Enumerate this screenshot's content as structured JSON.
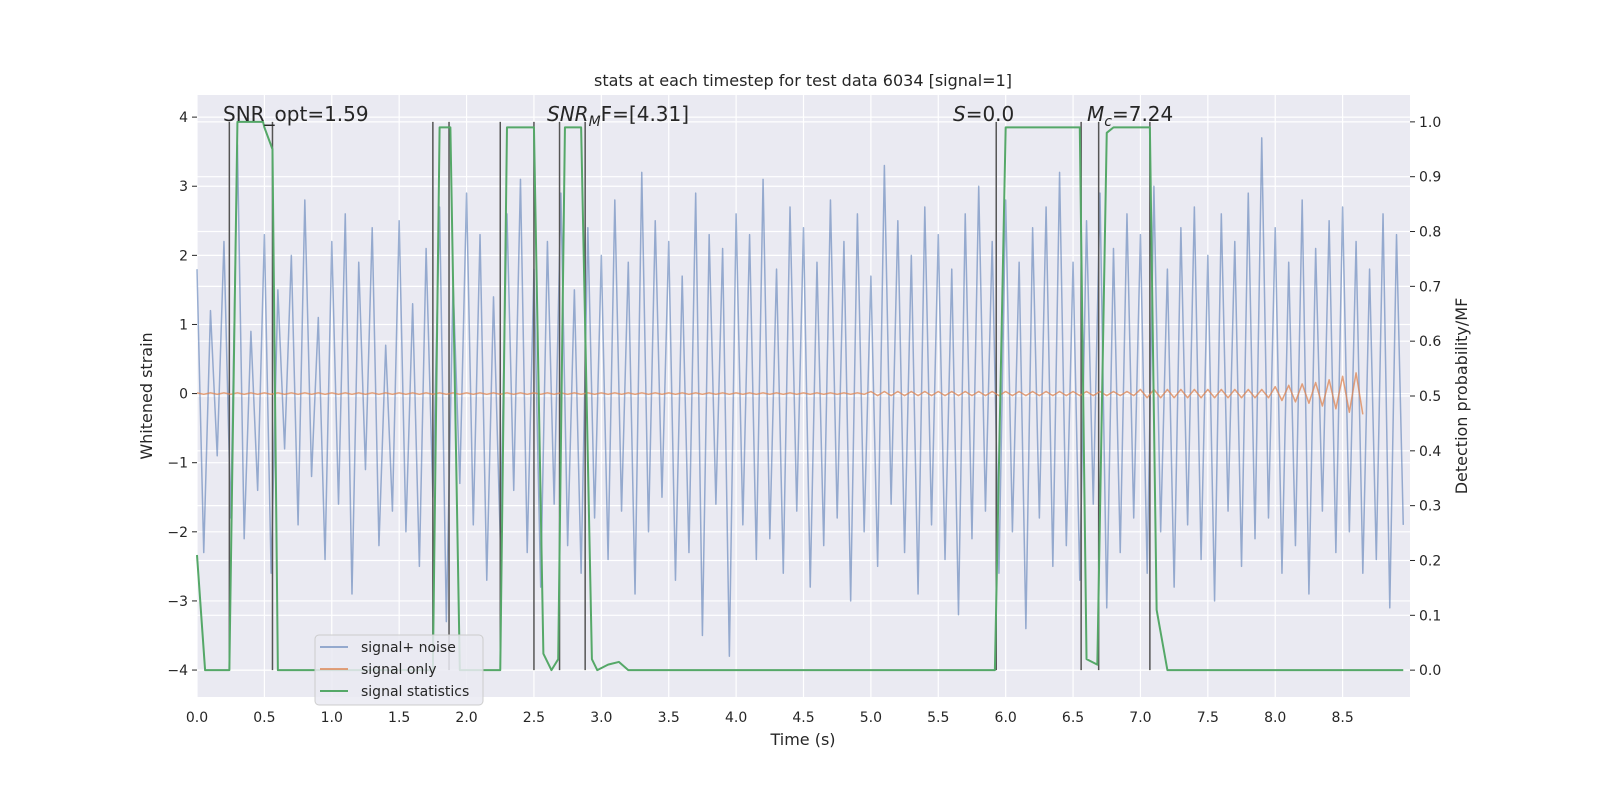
{
  "chart_data": {
    "type": "line",
    "title": "stats at each timestep for test data 6034 [signal=1]",
    "x_label": "Time (s)",
    "y_label": "Whitened strain",
    "y2_label": "Detection probability/MF",
    "xlim": [
      0,
      9.0
    ],
    "ylim": [
      -4.39,
      4.32
    ],
    "y2lim": [
      -0.049,
      1.049
    ],
    "xticks": [
      {
        "value": 0,
        "label": "0.0"
      },
      0.5,
      {
        "value": 1,
        "label": "1.0"
      },
      1.5,
      {
        "value": 2,
        "label": "2.0"
      },
      2.5,
      {
        "value": 3,
        "label": "3.0"
      },
      3.5,
      {
        "value": 4,
        "label": "4.0"
      },
      4.5,
      {
        "value": 5,
        "label": "5.0"
      },
      5.5,
      {
        "value": 6,
        "label": "6.0"
      },
      6.5,
      {
        "value": 7,
        "label": "7.0"
      },
      7.5,
      {
        "value": 8,
        "label": "8.0"
      },
      8.5
    ],
    "yticks": [
      {
        "value": -4,
        "label": "−4"
      },
      {
        "value": -3,
        "label": "−3"
      },
      {
        "value": -2,
        "label": "−2"
      },
      {
        "value": -1,
        "label": "−1"
      },
      0,
      1,
      2,
      3,
      4
    ],
    "y2ticks": [
      {
        "value": 0,
        "label": "0.0"
      },
      0.1,
      0.2,
      0.3,
      0.4,
      0.5,
      0.6,
      0.7,
      0.8,
      0.9,
      {
        "value": 1,
        "label": "1.0"
      }
    ],
    "grid": true,
    "legend": "lower left",
    "annotations": [
      {
        "text": "SNR_opt=1.59"
      },
      {
        "text": "SNR",
        "sub": "M",
        "tail": "F=[4.31]"
      },
      {
        "text": "S",
        "tail": "=0.0"
      },
      {
        "text": "M",
        "sub": "c",
        "tail": "=7.24"
      }
    ],
    "vlines": [
      0.24,
      0.56,
      1.75,
      1.87,
      2.25,
      2.5,
      2.69,
      2.88,
      5.93,
      6.56,
      6.69,
      7.07
    ],
    "vline_color": "#555555",
    "series": [
      {
        "name": "signal+ noise",
        "color": "#4c72b0",
        "opacity": 0.55,
        "x": [
          0,
          0.05,
          0.1,
          0.15,
          0.2,
          0.25,
          0.3,
          0.35,
          0.4,
          0.45,
          0.5,
          0.55,
          0.6,
          0.65,
          0.7,
          0.75,
          0.8,
          0.85,
          0.9,
          0.95,
          1,
          1.05,
          1.1,
          1.15,
          1.2,
          1.25,
          1.3,
          1.35,
          1.4,
          1.45,
          1.5,
          1.55,
          1.6,
          1.65,
          1.7,
          1.75,
          1.8,
          1.85,
          1.9,
          1.95,
          2,
          2.05,
          2.1,
          2.15,
          2.2,
          2.25,
          2.3,
          2.35,
          2.4,
          2.45,
          2.5,
          2.55,
          2.6,
          2.65,
          2.7,
          2.75,
          2.8,
          2.85,
          2.9,
          2.95,
          3,
          3.05,
          3.1,
          3.15,
          3.2,
          3.25,
          3.3,
          3.35,
          3.4,
          3.45,
          3.5,
          3.55,
          3.6,
          3.65,
          3.7,
          3.75,
          3.8,
          3.85,
          3.9,
          3.95,
          4,
          4.05,
          4.1,
          4.15,
          4.2,
          4.25,
          4.3,
          4.35,
          4.4,
          4.45,
          4.5,
          4.55,
          4.6,
          4.65,
          4.7,
          4.75,
          4.8,
          4.85,
          4.9,
          4.95,
          5,
          5.05,
          5.1,
          5.15,
          5.2,
          5.25,
          5.3,
          5.35,
          5.4,
          5.45,
          5.5,
          5.55,
          5.6,
          5.65,
          5.7,
          5.75,
          5.8,
          5.85,
          5.9,
          5.95,
          6,
          6.05,
          6.1,
          6.15,
          6.2,
          6.25,
          6.3,
          6.35,
          6.4,
          6.45,
          6.5,
          6.55,
          6.6,
          6.65,
          6.7,
          6.75,
          6.8,
          6.85,
          6.9,
          6.95,
          7,
          7.05,
          7.1,
          7.15,
          7.2,
          7.25,
          7.3,
          7.35,
          7.4,
          7.45,
          7.5,
          7.55,
          7.6,
          7.65,
          7.7,
          7.75,
          7.8,
          7.85,
          7.9,
          7.95,
          8,
          8.05,
          8.1,
          8.15,
          8.2,
          8.25,
          8.3,
          8.35,
          8.4,
          8.45,
          8.5,
          8.55,
          8.6,
          8.65,
          8.7,
          8.75,
          8.8,
          8.85,
          8.9,
          8.95
        ],
        "values": [
          1.8,
          -2.3,
          1.2,
          -0.9,
          2.2,
          -1.8,
          3.6,
          -2.1,
          0.9,
          -1.4,
          2.3,
          -2.6,
          1.5,
          -0.8,
          2.0,
          -1.9,
          2.8,
          -1.2,
          1.1,
          -2.4,
          2.2,
          -1.6,
          2.6,
          -2.9,
          1.9,
          -1.1,
          2.4,
          -2.2,
          0.7,
          -1.7,
          2.5,
          -2.0,
          1.3,
          -2.5,
          2.1,
          -1.5,
          2.7,
          -3.3,
          1.6,
          -1.3,
          2.9,
          -1.9,
          2.3,
          -2.7,
          1.4,
          -2.1,
          2.6,
          -1.4,
          3.1,
          -2.3,
          1.8,
          -2.8,
          2.2,
          -1.6,
          2.9,
          -2.2,
          1.5,
          -2.6,
          2.4,
          -1.8,
          2.0,
          -2.4,
          2.8,
          -1.7,
          1.9,
          -2.9,
          3.2,
          -2.0,
          2.5,
          -1.5,
          2.2,
          -2.7,
          1.7,
          -2.3,
          2.9,
          -3.5,
          2.3,
          -1.6,
          2.1,
          -3.8,
          2.6,
          -1.9,
          2.3,
          -2.4,
          3.1,
          -2.1,
          1.8,
          -2.6,
          2.7,
          -1.7,
          2.4,
          -2.8,
          1.9,
          -2.2,
          2.8,
          -1.8,
          2.2,
          -3.0,
          2.6,
          -2.0,
          1.7,
          -2.5,
          3.3,
          -1.6,
          2.5,
          -2.3,
          2.0,
          -2.9,
          2.7,
          -1.9,
          2.3,
          -2.4,
          1.8,
          -3.2,
          2.6,
          -2.1,
          3.0,
          -1.7,
          2.2,
          -2.6,
          2.8,
          -2.0,
          1.9,
          -3.4,
          2.4,
          -1.8,
          2.7,
          -2.5,
          3.2,
          -2.2,
          1.9,
          -2.7,
          2.5,
          -1.6,
          2.9,
          -3.1,
          2.1,
          -2.3,
          2.6,
          -1.8,
          2.3,
          -2.6,
          3.0,
          -2.0,
          1.8,
          -2.8,
          2.4,
          -1.9,
          2.7,
          -2.4,
          2.0,
          -3.0,
          2.6,
          -1.7,
          2.2,
          -2.5,
          2.9,
          -2.1,
          3.7,
          -1.8,
          2.4,
          -2.6,
          1.9,
          -2.2,
          2.8,
          -2.9,
          2.1,
          -1.7,
          2.5,
          -2.3,
          2.7,
          -2.0,
          2.2,
          -2.6,
          1.8,
          -2.4,
          2.6,
          -3.1,
          2.3,
          -1.9
        ]
      },
      {
        "name": "signal only",
        "color": "#dd8452",
        "opacity": 0.75,
        "x": [
          0,
          0.05,
          0.1,
          0.15,
          0.2,
          0.25,
          0.3,
          0.35,
          0.4,
          0.45,
          0.5,
          0.55,
          0.6,
          0.65,
          0.7,
          0.75,
          0.8,
          0.85,
          0.9,
          0.95,
          1,
          1.05,
          1.1,
          1.15,
          1.2,
          1.25,
          1.3,
          1.35,
          1.4,
          1.45,
          1.5,
          1.55,
          1.6,
          1.65,
          1.7,
          1.75,
          1.8,
          1.85,
          1.9,
          1.95,
          2,
          2.05,
          2.1,
          2.15,
          2.2,
          2.25,
          2.3,
          2.35,
          2.4,
          2.45,
          2.5,
          2.55,
          2.6,
          2.65,
          2.7,
          2.75,
          2.8,
          2.85,
          2.9,
          2.95,
          3,
          3.05,
          3.1,
          3.15,
          3.2,
          3.25,
          3.3,
          3.35,
          3.4,
          3.45,
          3.5,
          3.55,
          3.6,
          3.65,
          3.7,
          3.75,
          3.8,
          3.85,
          3.9,
          3.95,
          4,
          4.05,
          4.1,
          4.15,
          4.2,
          4.25,
          4.3,
          4.35,
          4.4,
          4.45,
          4.5,
          4.55,
          4.6,
          4.65,
          4.7,
          4.75,
          4.8,
          4.85,
          4.9,
          4.95,
          5,
          5.05,
          5.1,
          5.15,
          5.2,
          5.25,
          5.3,
          5.35,
          5.4,
          5.45,
          5.5,
          5.55,
          5.6,
          5.65,
          5.7,
          5.75,
          5.8,
          5.85,
          5.9,
          5.95,
          6,
          6.05,
          6.1,
          6.15,
          6.2,
          6.25,
          6.3,
          6.35,
          6.4,
          6.45,
          6.5,
          6.55,
          6.6,
          6.65,
          6.7,
          6.75,
          6.8,
          6.85,
          6.9,
          6.95,
          7,
          7.05,
          7.1,
          7.15,
          7.2,
          7.25,
          7.3,
          7.35,
          7.4,
          7.45,
          7.5,
          7.55,
          7.6,
          7.65,
          7.7,
          7.75,
          7.8,
          7.85,
          7.9,
          7.95,
          8,
          8.05,
          8.1,
          8.15,
          8.2,
          8.25,
          8.3,
          8.35,
          8.4,
          8.45,
          8.5,
          8.55,
          8.6,
          8.65,
          8.7,
          8.75,
          8.8,
          8.85,
          8.9,
          8.95
        ],
        "values": [
          0.01,
          -0.01,
          0.01,
          -0.01,
          0.01,
          -0.01,
          0.01,
          -0.01,
          0.01,
          -0.01,
          0.01,
          -0.01,
          0.01,
          -0.01,
          0.01,
          -0.01,
          0.01,
          -0.01,
          0.01,
          -0.01,
          0.01,
          -0.01,
          0.01,
          -0.01,
          0.01,
          -0.01,
          0.01,
          -0.01,
          0.01,
          -0.01,
          0.01,
          -0.01,
          0.01,
          -0.01,
          0.01,
          -0.01,
          0.01,
          -0.01,
          0.01,
          -0.01,
          0.01,
          -0.01,
          0.01,
          -0.01,
          0.01,
          -0.01,
          0.01,
          -0.01,
          0.01,
          -0.01,
          0.01,
          -0.01,
          0.01,
          -0.01,
          0.01,
          -0.01,
          0.01,
          -0.01,
          0.01,
          -0.01,
          0.01,
          -0.01,
          0.01,
          -0.01,
          0.01,
          -0.01,
          0.01,
          -0.01,
          0.01,
          -0.01,
          0.01,
          -0.01,
          0.01,
          -0.01,
          0.01,
          -0.01,
          0.01,
          -0.01,
          0.01,
          -0.01,
          0.01,
          -0.01,
          0.01,
          -0.01,
          0.01,
          -0.01,
          0.01,
          -0.01,
          0.01,
          -0.01,
          0.01,
          -0.01,
          0.01,
          -0.01,
          0.01,
          -0.01,
          0.01,
          -0.01,
          0.01,
          -0.01,
          0.03,
          -0.03,
          0.03,
          -0.03,
          0.03,
          -0.03,
          0.03,
          -0.03,
          0.03,
          -0.03,
          0.03,
          -0.03,
          0.03,
          -0.03,
          0.03,
          -0.03,
          0.03,
          -0.03,
          0.03,
          -0.03,
          0.03,
          -0.03,
          0.03,
          -0.03,
          0.03,
          -0.03,
          0.03,
          -0.03,
          0.03,
          -0.03,
          0.03,
          -0.03,
          0.03,
          -0.03,
          0.03,
          -0.03,
          0.03,
          -0.03,
          0.03,
          -0.03,
          0.06,
          -0.06,
          0.06,
          -0.06,
          0.06,
          -0.06,
          0.06,
          -0.06,
          0.06,
          -0.06,
          0.06,
          -0.06,
          0.06,
          -0.06,
          0.06,
          -0.06,
          0.06,
          -0.06,
          0.06,
          -0.06,
          0.1,
          -0.1,
          0.12,
          -0.12,
          0.14,
          -0.14,
          0.16,
          -0.18,
          0.2,
          -0.22,
          0.25,
          -0.27,
          0.3,
          -0.3,
          null,
          null,
          null,
          null,
          null,
          null
        ]
      },
      {
        "name": "signal statistics",
        "color": "#55a868",
        "opacity": 1,
        "axis": "y2",
        "x": [
          0,
          0.06,
          0.24,
          0.3,
          0.49,
          0.5,
          0.56,
          0.6,
          1.75,
          1.8,
          1.88,
          1.95,
          2.25,
          2.3,
          2.5,
          2.57,
          2.63,
          2.68,
          2.73,
          2.85,
          2.93,
          2.97,
          3.05,
          3.13,
          3.2,
          5.92,
          6.0,
          6.55,
          6.6,
          6.68,
          6.75,
          6.8,
          7.07,
          7.12,
          7.2,
          8.95
        ],
        "values": [
          0.21,
          0,
          0,
          1.0,
          1.0,
          0.99,
          0.95,
          0,
          0,
          0.99,
          0.99,
          0,
          0,
          0.99,
          0.99,
          0.03,
          0,
          0.02,
          0.99,
          0.99,
          0.02,
          0,
          0.01,
          0.015,
          0,
          0,
          0.99,
          0.99,
          0.02,
          0.01,
          0.98,
          0.99,
          0.99,
          0.11,
          0,
          0
        ]
      }
    ]
  }
}
